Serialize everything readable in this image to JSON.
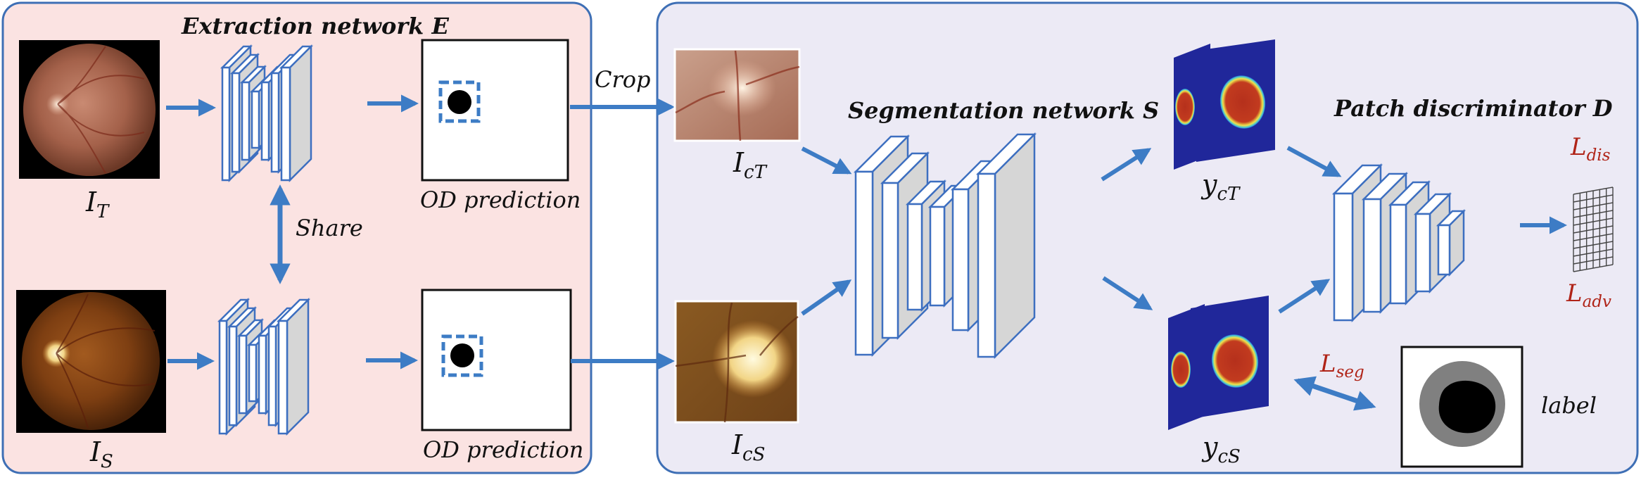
{
  "colors": {
    "left_panel_fill": "#fbe3e2",
    "right_panel_fill": "#eceaf5",
    "panel_border": "#3e6fb5",
    "arrow": "#3d7cc5",
    "layer_face": "#d6d6d6",
    "layer_edge": "#3d6fc0",
    "loss_red": "#b02418",
    "seg_blue": "#20279a",
    "seg_red": "#b5301c"
  },
  "extraction": {
    "title": "Extraction network E",
    "share_label": "Share",
    "input_target": {
      "main": "I",
      "sub": "T"
    },
    "input_source": {
      "main": "I",
      "sub": "S"
    },
    "prediction_top_label": "OD prediction",
    "prediction_bottom_label": "OD prediction"
  },
  "crop_label": "Crop",
  "segmentation": {
    "title": "Segmentation network S",
    "crop_target": {
      "main": "I",
      "sub": "cT"
    },
    "crop_source": {
      "main": "I",
      "sub": "cS"
    },
    "out_target": {
      "main": "y",
      "sub": "cT"
    },
    "out_source": {
      "main": "y",
      "sub": "cS"
    }
  },
  "discriminator": {
    "title": "Patch discriminator D",
    "loss_dis": {
      "main": "L",
      "sub": "dis"
    },
    "loss_adv": {
      "main": "L",
      "sub": "adv"
    }
  },
  "loss_seg": {
    "main": "L",
    "sub": "seg"
  },
  "label_caption": "label",
  "icons": [
    "fundus-image-icon",
    "optic-disc-crop-icon",
    "segmentation-map-icon",
    "patch-grid-icon",
    "ground-truth-label-icon"
  ]
}
